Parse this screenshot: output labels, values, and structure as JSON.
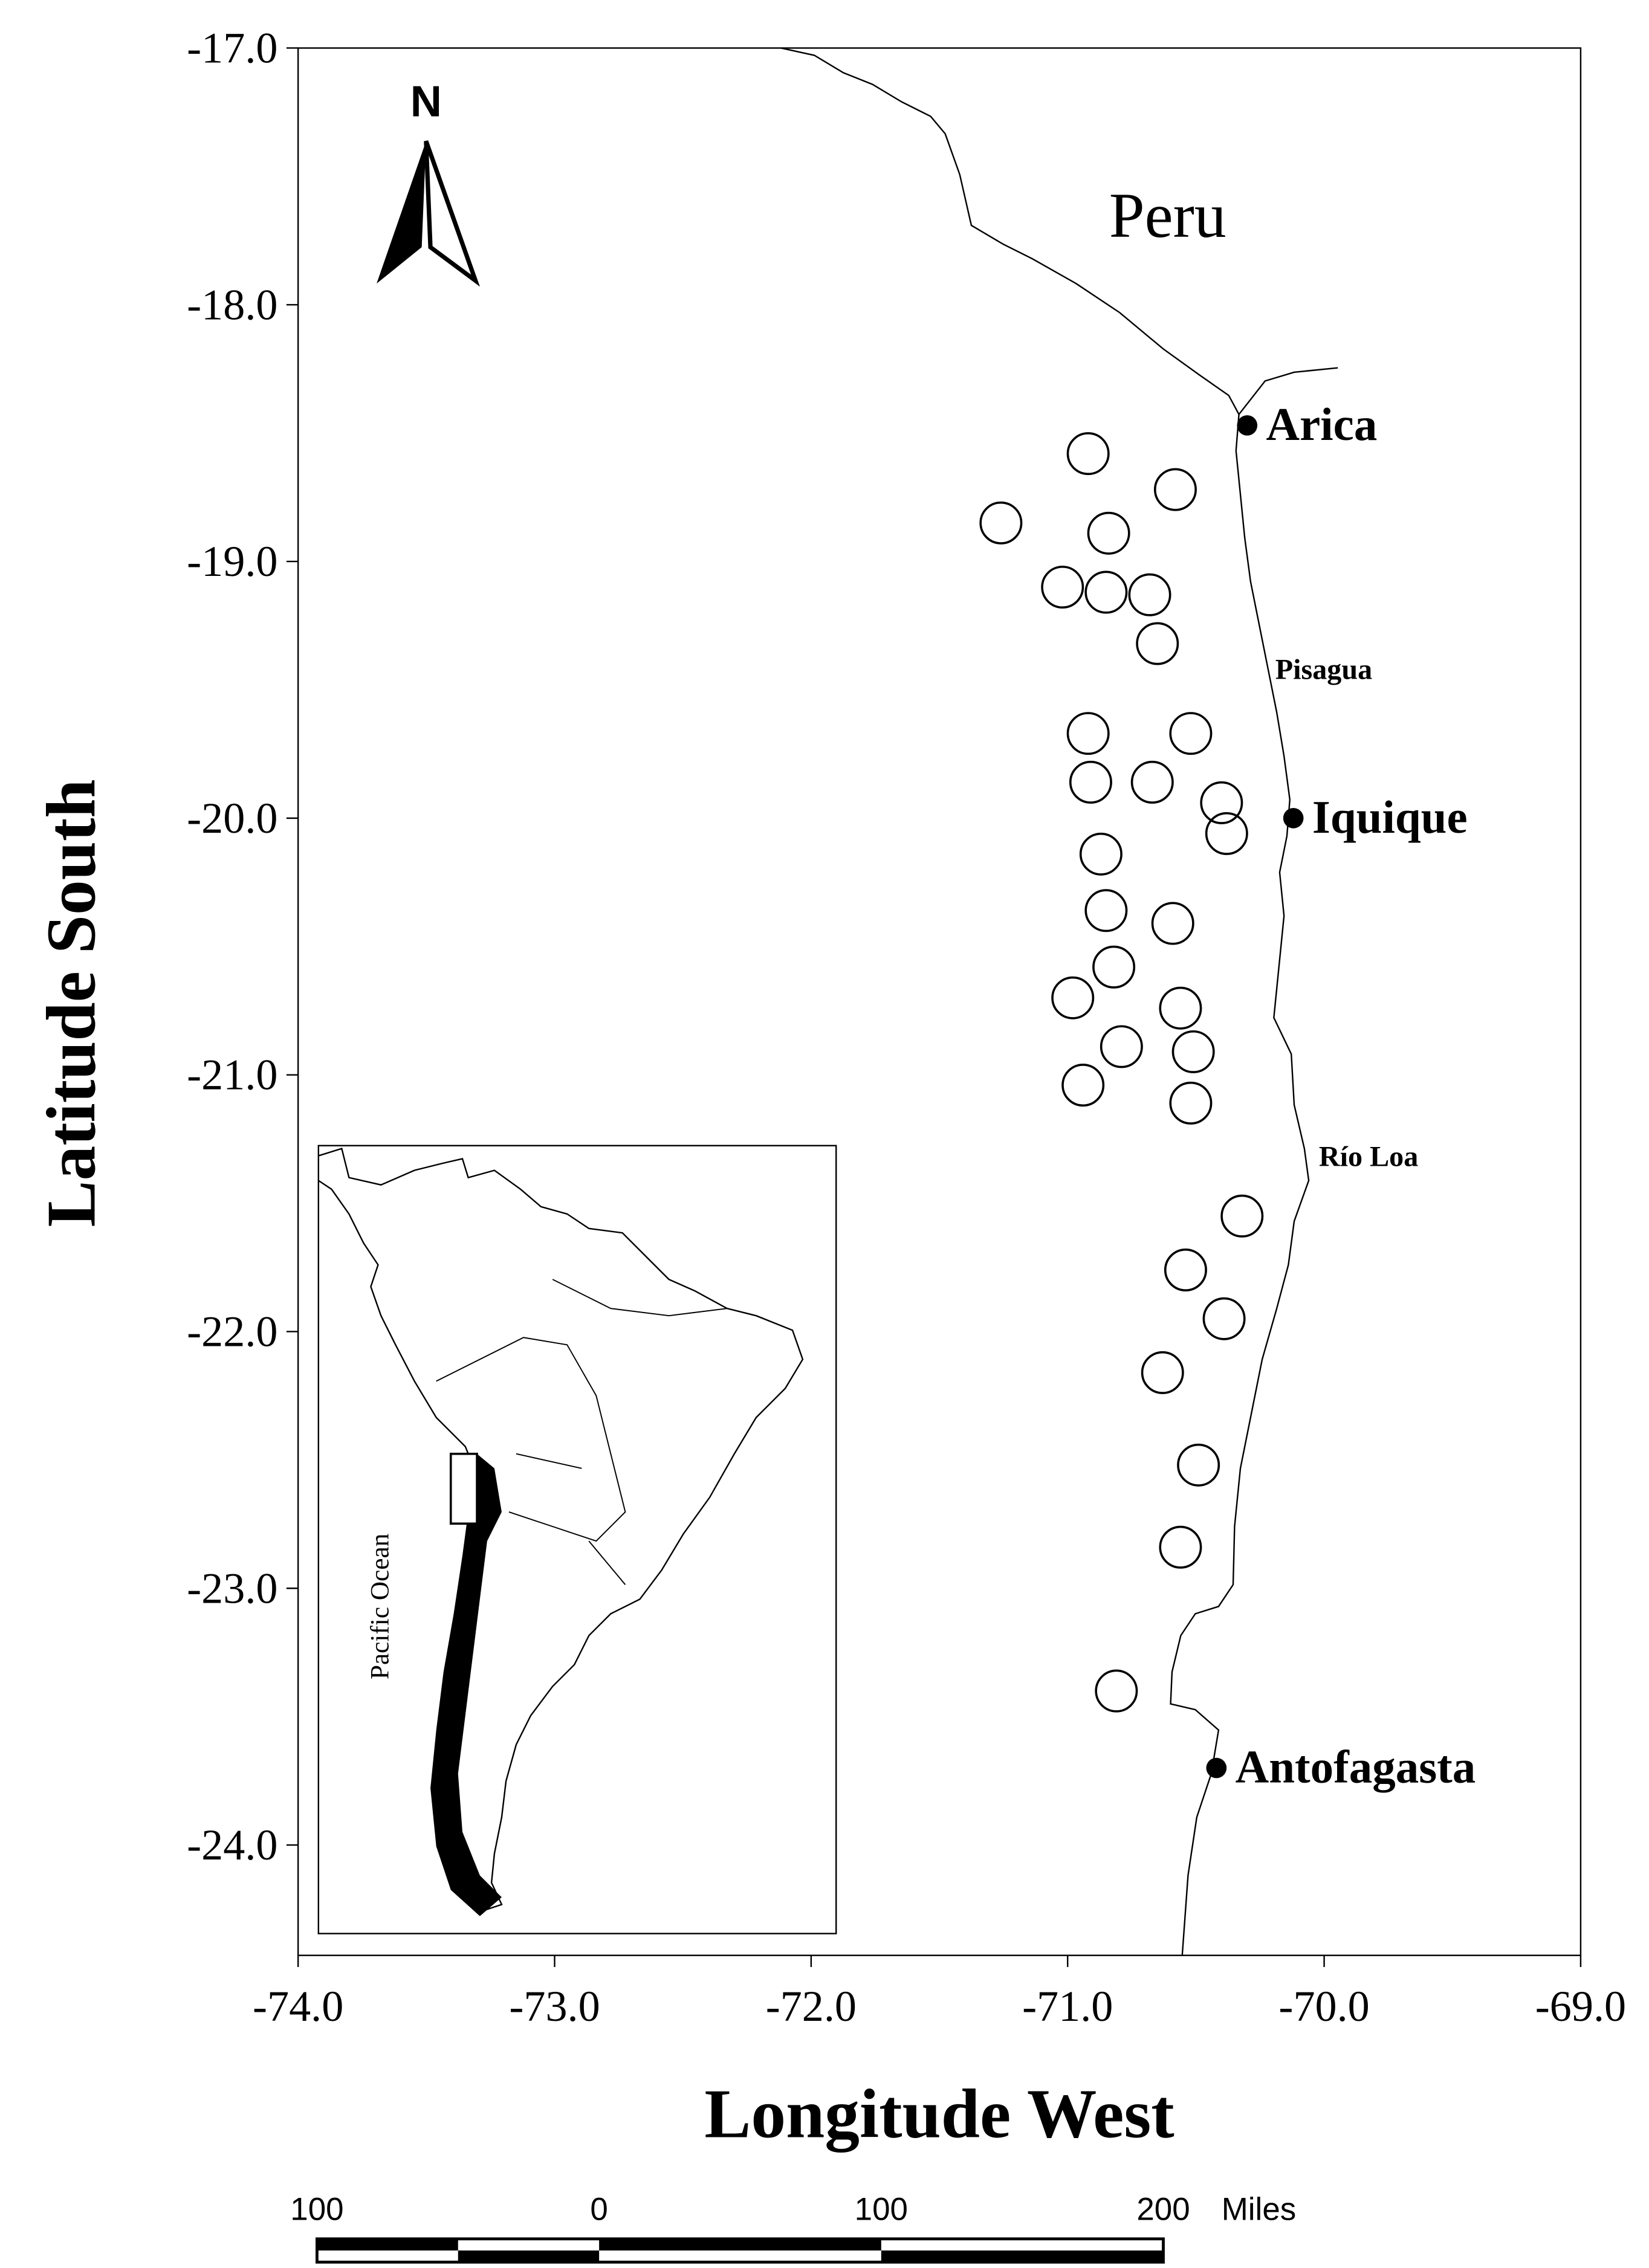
{
  "chart_data": {
    "type": "scatter",
    "x_label": "Longitude West",
    "y_label": "Latitude South",
    "xlim": [
      -74,
      -69
    ],
    "ylim": [
      -24.43,
      -17
    ],
    "xticks": [
      {
        "value": -74,
        "label": "-74.0"
      },
      {
        "value": -73,
        "label": "-73.0"
      },
      {
        "value": -72,
        "label": "-72.0"
      },
      {
        "value": -71,
        "label": "-71.0"
      },
      {
        "value": -70,
        "label": "-70.0"
      },
      {
        "value": -69,
        "label": "-69.0"
      }
    ],
    "yticks": [
      {
        "value": -17,
        "label": "-17.0"
      },
      {
        "value": -18,
        "label": "-18.0"
      },
      {
        "value": -19,
        "label": "-19.0"
      },
      {
        "value": -20,
        "label": "-20.0"
      },
      {
        "value": -21,
        "label": "-21.0"
      },
      {
        "value": -22,
        "label": "-22.0"
      },
      {
        "value": -23,
        "label": "-23.0"
      },
      {
        "value": -24,
        "label": "-24.0"
      }
    ],
    "marker_color": "#000000",
    "x": [
      -70.92,
      -70.58,
      -71.26,
      -70.84,
      -71.02,
      -70.85,
      -70.68,
      -70.65,
      -70.92,
      -70.52,
      -70.91,
      -70.67,
      -70.4,
      -70.38,
      -70.87,
      -70.85,
      -70.59,
      -70.82,
      -70.98,
      -70.56,
      -70.79,
      -70.51,
      -70.94,
      -70.52,
      -70.32,
      -70.54,
      -70.39,
      -70.63,
      -70.49,
      -70.56,
      -70.81
    ],
    "values": [
      -18.58,
      -18.72,
      -18.85,
      -18.89,
      -19.1,
      -19.12,
      -19.13,
      -19.32,
      -19.67,
      -19.67,
      -19.86,
      -19.86,
      -19.94,
      -20.06,
      -20.14,
      -20.36,
      -20.41,
      -20.58,
      -20.7,
      -20.74,
      -20.89,
      -20.91,
      -21.04,
      -21.11,
      -21.55,
      -21.76,
      -21.95,
      -22.16,
      -22.52,
      -22.84,
      -23.4
    ],
    "cities": [
      {
        "name": "Arica",
        "x": -70.3,
        "y": -18.47
      },
      {
        "name": "Iquique",
        "x": -70.12,
        "y": -20.0
      },
      {
        "name": "Antofagasta",
        "x": -70.42,
        "y": -23.7
      }
    ],
    "place_labels": [
      "Peru",
      "Pisagua",
      "Río Loa"
    ],
    "north_label": "N"
  },
  "inset": {
    "ocean_label": "Pacific Ocean"
  },
  "scale_bar": {
    "labels": [
      "100",
      "0",
      "100",
      "200"
    ],
    "unit": "Miles"
  }
}
